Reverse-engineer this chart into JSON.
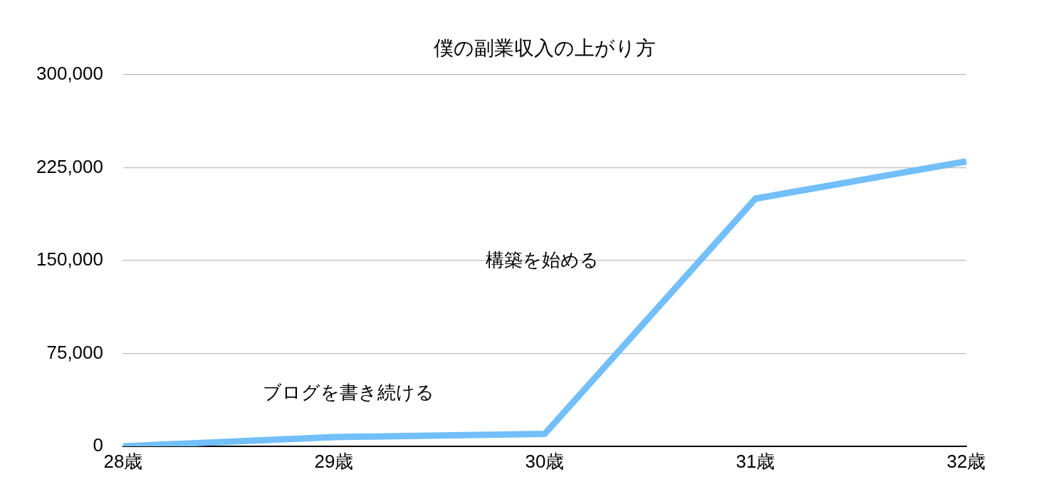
{
  "chart_data": {
    "type": "line",
    "title": "僕の副業収入の上がり方",
    "categories": [
      "28歳",
      "29歳",
      "30歳",
      "31歳",
      "32歳"
    ],
    "series": [
      {
        "color": "#72bff9",
        "values": [
          0,
          7500,
          10000,
          200000,
          230000
        ]
      }
    ],
    "ylim": [
      0,
      300000
    ],
    "yticks": [
      0,
      {
        "value": 75000,
        "label": "75,000"
      },
      {
        "value": 150000,
        "label": "150,000"
      },
      {
        "value": 225000,
        "label": "225,000"
      },
      {
        "value": 300000,
        "label": "300,000"
      }
    ],
    "grid": "y",
    "legend": false,
    "marker": "none",
    "annotations": [
      "ブログを書き続ける",
      "構築を始める"
    ]
  }
}
